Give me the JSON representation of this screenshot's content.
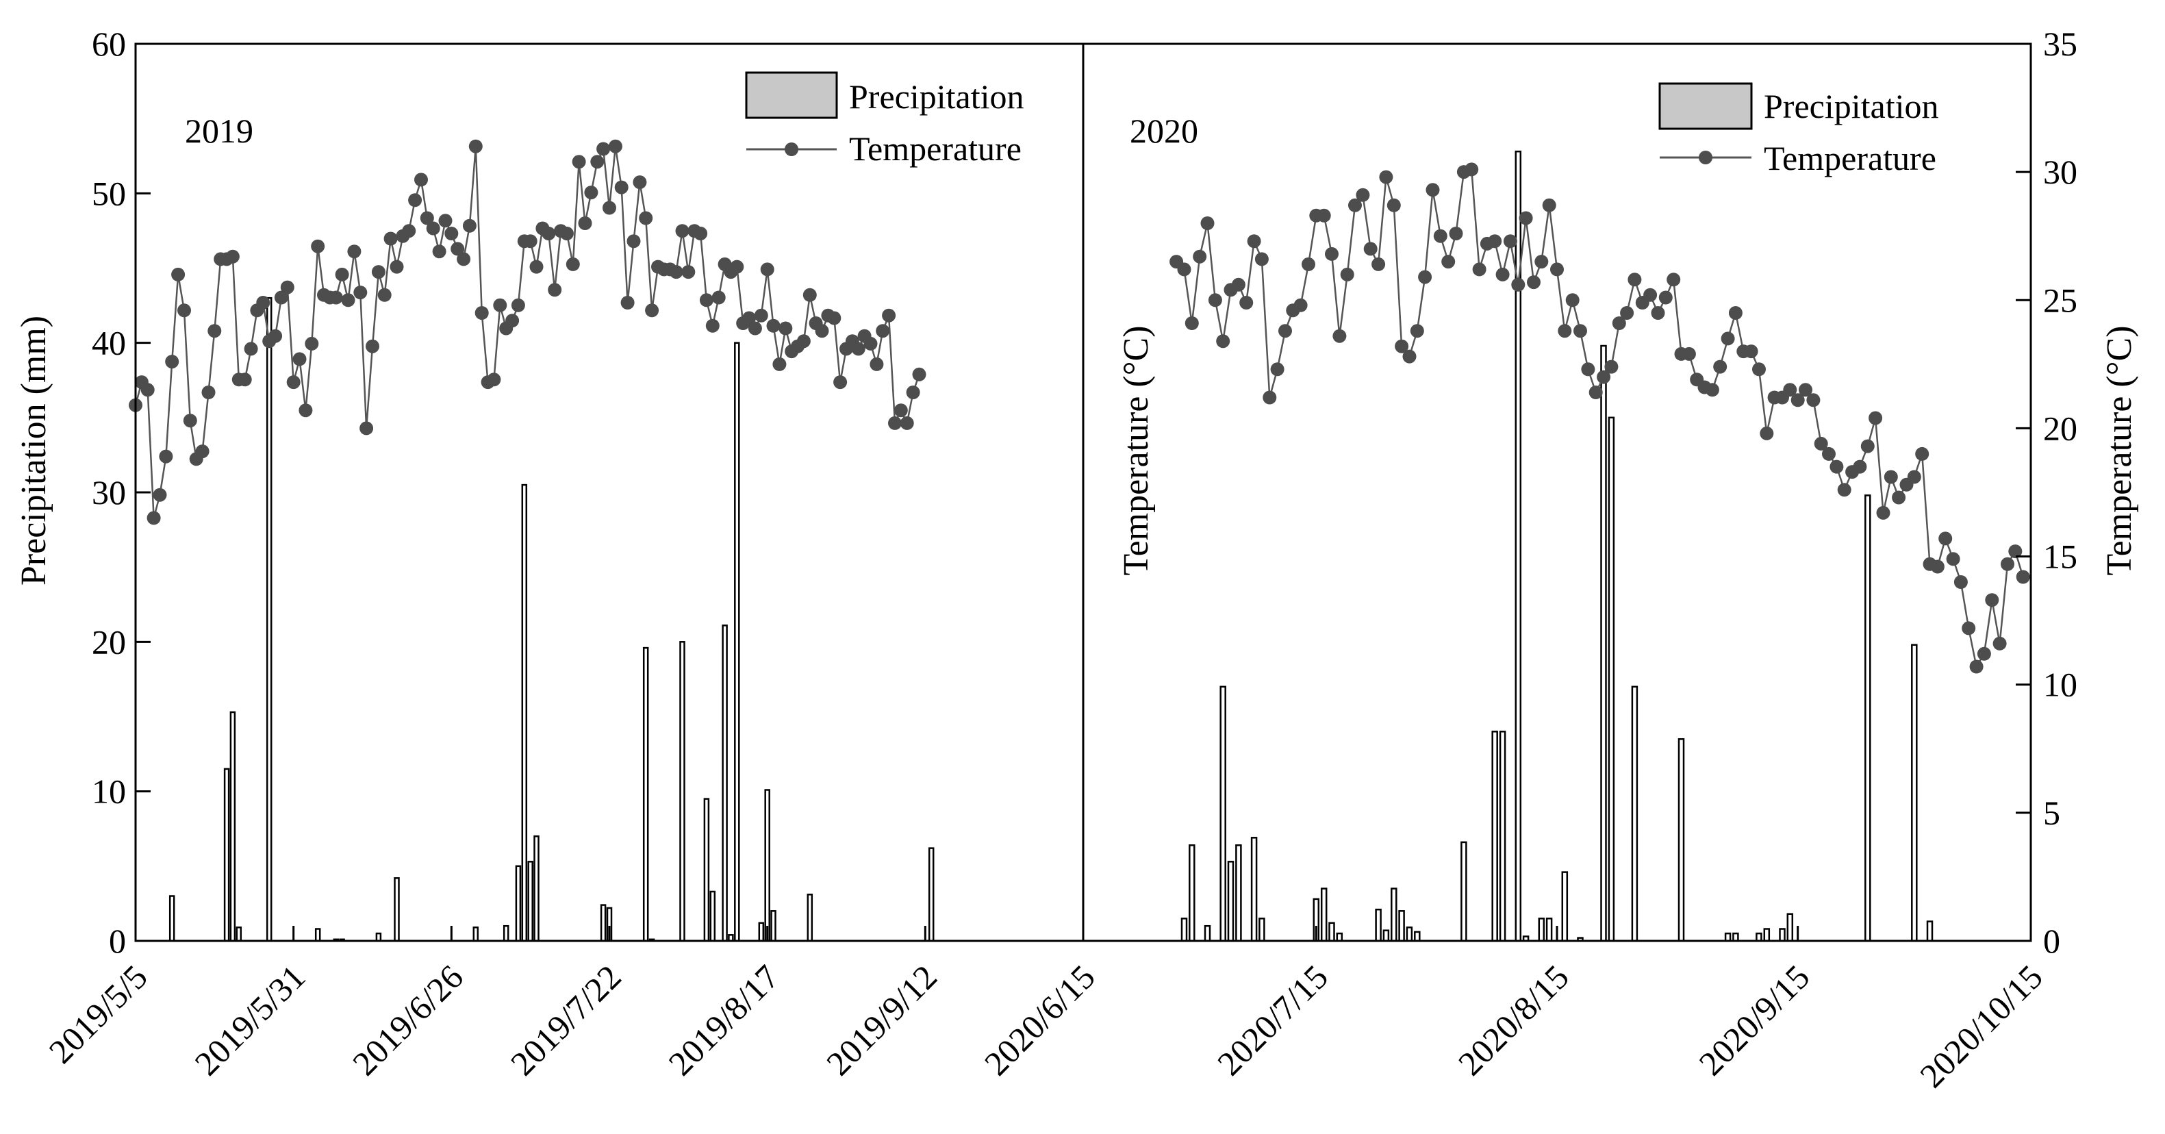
{
  "chart_data": {
    "type": "bar+line",
    "y_left": {
      "label": "Precipitation (mm)",
      "range": [
        0,
        60
      ],
      "ticks": [
        0,
        10,
        20,
        30,
        40,
        50,
        60
      ]
    },
    "y_right": {
      "label": "Temperature (°C)",
      "range": [
        0,
        35
      ],
      "ticks": [
        0,
        5,
        10,
        15,
        20,
        25,
        30,
        35
      ]
    },
    "legend": {
      "precip_label": "Precipitation",
      "temp_label": "Temperature"
    },
    "panels": [
      {
        "year_label": "2019",
        "extra_ylabel": "",
        "x_ticks": [
          "2019/5/5",
          "2019/5/31",
          "2019/6/26",
          "2019/7/22",
          "2019/8/17",
          "2019/9/12"
        ],
        "tick_days": [
          0,
          26,
          52,
          78,
          104,
          130
        ],
        "day_range": [
          0,
          156
        ],
        "precip": [
          [
            6,
            3
          ],
          [
            15,
            11.5
          ],
          [
            16,
            15.3
          ],
          [
            17,
            0.9
          ],
          [
            22,
            43
          ],
          [
            30,
            0.8
          ],
          [
            33,
            0.1
          ],
          [
            34,
            0.1
          ],
          [
            40,
            0.5
          ],
          [
            43,
            4.2
          ],
          [
            56,
            0.9
          ],
          [
            61,
            1
          ],
          [
            63,
            5
          ],
          [
            64,
            30.5
          ],
          [
            65,
            5.3
          ],
          [
            66,
            7
          ],
          [
            77,
            2.4
          ],
          [
            78,
            2.2
          ],
          [
            84,
            19.6
          ],
          [
            85,
            0.1
          ],
          [
            90,
            20
          ],
          [
            94,
            9.5
          ],
          [
            95,
            3.3
          ],
          [
            97,
            21.1
          ],
          [
            98,
            0.4
          ],
          [
            99,
            40
          ],
          [
            103,
            1.2
          ],
          [
            104,
            10.1
          ],
          [
            105,
            2
          ],
          [
            111,
            3.1
          ],
          [
            131,
            6.2
          ]
        ],
        "temp": [
          [
            0,
            20.9
          ],
          [
            1,
            21.8
          ],
          [
            2,
            21.5
          ],
          [
            3,
            16.5
          ],
          [
            4,
            17.4
          ],
          [
            5,
            18.9
          ],
          [
            6,
            22.6
          ],
          [
            7,
            26
          ],
          [
            8,
            24.6
          ],
          [
            9,
            20.3
          ],
          [
            10,
            18.8
          ],
          [
            11,
            19.1
          ],
          [
            12,
            21.4
          ],
          [
            13,
            23.8
          ],
          [
            14,
            26.6
          ],
          [
            15,
            26.6
          ],
          [
            16,
            26.7
          ],
          [
            17,
            21.9
          ],
          [
            18,
            21.9
          ],
          [
            19,
            23.1
          ],
          [
            20,
            24.6
          ],
          [
            21,
            24.9
          ],
          [
            22,
            23.4
          ],
          [
            23,
            23.6
          ],
          [
            24,
            25.1
          ],
          [
            25,
            25.5
          ],
          [
            26,
            21.8
          ],
          [
            27,
            22.7
          ],
          [
            28,
            20.7
          ],
          [
            29,
            23.3
          ],
          [
            30,
            27.1
          ],
          [
            31,
            25.2
          ],
          [
            32,
            25.1
          ],
          [
            33,
            25.1
          ],
          [
            34,
            26
          ],
          [
            35,
            25
          ],
          [
            36,
            26.9
          ],
          [
            37,
            25.3
          ],
          [
            38,
            20
          ],
          [
            39,
            23.2
          ],
          [
            40,
            26.1
          ],
          [
            41,
            25.2
          ],
          [
            42,
            27.4
          ],
          [
            43,
            26.3
          ],
          [
            44,
            27.5
          ],
          [
            45,
            27.7
          ],
          [
            46,
            28.9
          ],
          [
            47,
            29.7
          ],
          [
            48,
            28.2
          ],
          [
            49,
            27.8
          ],
          [
            50,
            26.9
          ],
          [
            51,
            28.1
          ],
          [
            52,
            27.6
          ],
          [
            53,
            27
          ],
          [
            54,
            26.6
          ],
          [
            55,
            27.9
          ],
          [
            56,
            31
          ],
          [
            57,
            24.5
          ],
          [
            58,
            21.8
          ],
          [
            59,
            21.9
          ],
          [
            60,
            24.8
          ],
          [
            61,
            23.9
          ],
          [
            62,
            24.2
          ],
          [
            63,
            24.8
          ],
          [
            64,
            27.3
          ],
          [
            65,
            27.3
          ],
          [
            66,
            26.3
          ],
          [
            67,
            27.8
          ],
          [
            68,
            27.6
          ],
          [
            69,
            25.4
          ],
          [
            70,
            27.7
          ],
          [
            71,
            27.6
          ],
          [
            72,
            26.4
          ],
          [
            73,
            30.4
          ],
          [
            74,
            28
          ],
          [
            75,
            29.2
          ],
          [
            76,
            30.4
          ],
          [
            77,
            30.9
          ],
          [
            78,
            28.6
          ],
          [
            79,
            31
          ],
          [
            80,
            29.4
          ],
          [
            81,
            24.9
          ],
          [
            82,
            27.3
          ],
          [
            83,
            29.6
          ],
          [
            84,
            28.2
          ],
          [
            85,
            24.6
          ],
          [
            86,
            26.3
          ],
          [
            87,
            26.2
          ],
          [
            88,
            26.2
          ],
          [
            89,
            26.1
          ],
          [
            90,
            27.7
          ],
          [
            91,
            26.1
          ],
          [
            92,
            27.7
          ],
          [
            93,
            27.6
          ],
          [
            94,
            25
          ],
          [
            95,
            24
          ],
          [
            96,
            25.1
          ],
          [
            97,
            26.4
          ],
          [
            98,
            26.1
          ],
          [
            99,
            26.3
          ],
          [
            100,
            24.1
          ],
          [
            101,
            24.3
          ],
          [
            102,
            23.9
          ],
          [
            103,
            24.4
          ],
          [
            104,
            26.2
          ],
          [
            105,
            24
          ],
          [
            106,
            22.5
          ],
          [
            107,
            23.9
          ],
          [
            108,
            23
          ],
          [
            109,
            23.2
          ],
          [
            110,
            23.4
          ],
          [
            111,
            25.2
          ],
          [
            112,
            24.1
          ],
          [
            113,
            23.8
          ],
          [
            114,
            24.4
          ],
          [
            115,
            24.3
          ],
          [
            116,
            21.8
          ],
          [
            117,
            23.1
          ],
          [
            118,
            23.4
          ],
          [
            119,
            23.1
          ],
          [
            120,
            23.6
          ],
          [
            121,
            23.3
          ],
          [
            122,
            22.5
          ],
          [
            123,
            23.8
          ],
          [
            124,
            24.4
          ],
          [
            125,
            20.2
          ],
          [
            126,
            20.7
          ],
          [
            127,
            20.2
          ],
          [
            128,
            21.4
          ],
          [
            129,
            22.1
          ]
        ]
      },
      {
        "year_label": "2020",
        "extra_ylabel": "Temperature (°C)",
        "x_ticks": [
          "2020/6/15",
          "2020/7/15",
          "2020/8/15",
          "2020/9/15",
          "2020/10/15"
        ],
        "tick_days": [
          0,
          30,
          61,
          92,
          122
        ],
        "day_range": [
          0,
          122
        ],
        "precip": [
          [
            13,
            1.5
          ],
          [
            14,
            6.4
          ],
          [
            16,
            1
          ],
          [
            18,
            17
          ],
          [
            19,
            5.3
          ],
          [
            20,
            6.4
          ],
          [
            22,
            6.9
          ],
          [
            23,
            1.5
          ],
          [
            30,
            2.8
          ],
          [
            31,
            3.5
          ],
          [
            32,
            1.2
          ],
          [
            33,
            0.5
          ],
          [
            38,
            2.1
          ],
          [
            39,
            0.7
          ],
          [
            40,
            3.5
          ],
          [
            41,
            2
          ],
          [
            42,
            0.9
          ],
          [
            43,
            0.6
          ],
          [
            49,
            6.6
          ],
          [
            53,
            14
          ],
          [
            54,
            14
          ],
          [
            56,
            52.8
          ],
          [
            57,
            0.3
          ],
          [
            59,
            1.5
          ],
          [
            60,
            1.5
          ],
          [
            62,
            4.6
          ],
          [
            64,
            0.2
          ],
          [
            67,
            39.8
          ],
          [
            68,
            35
          ],
          [
            71,
            17
          ],
          [
            77,
            13.5
          ],
          [
            83,
            0.5
          ],
          [
            84,
            0.5
          ],
          [
            87,
            0.5
          ],
          [
            88,
            0.8
          ],
          [
            90,
            0.8
          ],
          [
            91,
            1.8
          ],
          [
            101,
            29.8
          ],
          [
            107,
            19.8
          ],
          [
            109,
            1.3
          ]
        ],
        "temp": [
          [
            12,
            26.5
          ],
          [
            13,
            26.2
          ],
          [
            14,
            24.1
          ],
          [
            15,
            26.7
          ],
          [
            16,
            28
          ],
          [
            17,
            25
          ],
          [
            18,
            23.4
          ],
          [
            19,
            25.4
          ],
          [
            20,
            25.6
          ],
          [
            21,
            24.9
          ],
          [
            22,
            27.3
          ],
          [
            23,
            26.6
          ],
          [
            24,
            21.2
          ],
          [
            25,
            22.3
          ],
          [
            26,
            23.8
          ],
          [
            27,
            24.6
          ],
          [
            28,
            24.8
          ],
          [
            29,
            26.4
          ],
          [
            30,
            28.3
          ],
          [
            31,
            28.3
          ],
          [
            32,
            26.8
          ],
          [
            33,
            23.6
          ],
          [
            34,
            26
          ],
          [
            35,
            28.7
          ],
          [
            36,
            29.1
          ],
          [
            37,
            27
          ],
          [
            38,
            26.4
          ],
          [
            39,
            29.8
          ],
          [
            40,
            28.7
          ],
          [
            41,
            23.2
          ],
          [
            42,
            22.8
          ],
          [
            43,
            23.8
          ],
          [
            44,
            25.9
          ],
          [
            45,
            29.3
          ],
          [
            46,
            27.5
          ],
          [
            47,
            26.5
          ],
          [
            48,
            27.6
          ],
          [
            49,
            30
          ],
          [
            50,
            30.1
          ],
          [
            51,
            26.2
          ],
          [
            52,
            27.2
          ],
          [
            53,
            27.3
          ],
          [
            54,
            26
          ],
          [
            55,
            27.3
          ],
          [
            56,
            25.6
          ],
          [
            57,
            28.2
          ],
          [
            58,
            25.7
          ],
          [
            59,
            26.5
          ],
          [
            60,
            28.7
          ],
          [
            61,
            26.2
          ],
          [
            62,
            23.8
          ],
          [
            63,
            25
          ],
          [
            64,
            23.8
          ],
          [
            65,
            22.3
          ],
          [
            66,
            21.4
          ],
          [
            67,
            22
          ],
          [
            68,
            22.4
          ],
          [
            69,
            24.1
          ],
          [
            70,
            24.5
          ],
          [
            71,
            25.8
          ],
          [
            72,
            24.9
          ],
          [
            73,
            25.2
          ],
          [
            74,
            24.5
          ],
          [
            75,
            25.1
          ],
          [
            76,
            25.8
          ],
          [
            77,
            22.9
          ],
          [
            78,
            22.9
          ],
          [
            79,
            21.9
          ],
          [
            80,
            21.6
          ],
          [
            81,
            21.5
          ],
          [
            82,
            22.4
          ],
          [
            83,
            23.5
          ],
          [
            84,
            24.5
          ],
          [
            85,
            23
          ],
          [
            86,
            23
          ],
          [
            87,
            22.3
          ],
          [
            88,
            19.8
          ],
          [
            89,
            21.2
          ],
          [
            90,
            21.2
          ],
          [
            91,
            21.5
          ],
          [
            92,
            21.1
          ],
          [
            93,
            21.5
          ],
          [
            94,
            21.1
          ],
          [
            95,
            19.4
          ],
          [
            96,
            19
          ],
          [
            97,
            18.5
          ],
          [
            98,
            17.6
          ],
          [
            99,
            18.3
          ],
          [
            100,
            18.5
          ],
          [
            101,
            19.3
          ],
          [
            102,
            20.4
          ],
          [
            103,
            16.7
          ],
          [
            104,
            18.1
          ],
          [
            105,
            17.3
          ],
          [
            106,
            17.8
          ],
          [
            107,
            18.1
          ],
          [
            108,
            19
          ],
          [
            109,
            14.7
          ],
          [
            110,
            14.6
          ],
          [
            111,
            15.7
          ],
          [
            112,
            14.9
          ],
          [
            113,
            14
          ],
          [
            114,
            12.2
          ],
          [
            115,
            10.7
          ],
          [
            116,
            11.2
          ],
          [
            117,
            13.3
          ],
          [
            118,
            11.6
          ],
          [
            119,
            14.7
          ],
          [
            120,
            15.2
          ],
          [
            121,
            14.2
          ]
        ]
      }
    ]
  }
}
